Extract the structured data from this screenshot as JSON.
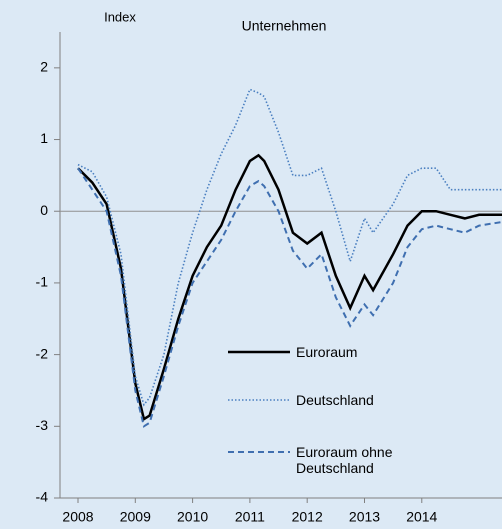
{
  "chart_data": {
    "type": "line",
    "title": "Unternehmen",
    "y_label": "Index",
    "x": [
      2008.0,
      2008.25,
      2008.5,
      2008.75,
      2009.0,
      2009.15,
      2009.25,
      2009.5,
      2009.75,
      2010.0,
      2010.25,
      2010.5,
      2010.75,
      2011.0,
      2011.15,
      2011.25,
      2011.5,
      2011.75,
      2012.0,
      2012.25,
      2012.5,
      2012.75,
      2013.0,
      2013.15,
      2013.5,
      2013.75,
      2014.0,
      2014.25,
      2014.5,
      2014.75,
      2015.0,
      2015.4
    ],
    "series": [
      {
        "name": "Euroraum",
        "color": "#000000",
        "dash": "solid",
        "values": [
          0.6,
          0.4,
          0.1,
          -0.8,
          -2.4,
          -2.9,
          -2.85,
          -2.2,
          -1.5,
          -0.9,
          -0.5,
          -0.2,
          0.3,
          0.7,
          0.78,
          0.7,
          0.3,
          -0.3,
          -0.45,
          -0.3,
          -0.9,
          -1.35,
          -0.9,
          -1.1,
          -0.6,
          -0.2,
          0.0,
          0.0,
          -0.05,
          -0.1,
          -0.05,
          -0.05
        ]
      },
      {
        "name": "Deutschland",
        "color": "#4a7fc0",
        "dash": "dotted",
        "values": [
          0.65,
          0.55,
          0.2,
          -0.6,
          -2.3,
          -2.7,
          -2.6,
          -2.0,
          -1.0,
          -0.3,
          0.3,
          0.8,
          1.2,
          1.7,
          1.65,
          1.6,
          1.1,
          0.5,
          0.5,
          0.6,
          0.0,
          -0.7,
          -0.1,
          -0.3,
          0.1,
          0.5,
          0.6,
          0.6,
          0.3,
          0.3,
          0.3,
          0.3
        ]
      },
      {
        "name": "Euroraum ohne Deutschland",
        "color": "#3f6fb0",
        "dash": "dashed",
        "values": [
          0.6,
          0.3,
          0.0,
          -0.9,
          -2.5,
          -3.0,
          -2.95,
          -2.3,
          -1.6,
          -1.0,
          -0.7,
          -0.4,
          0.0,
          0.35,
          0.42,
          0.35,
          0.0,
          -0.55,
          -0.8,
          -0.6,
          -1.2,
          -1.6,
          -1.3,
          -1.45,
          -1.0,
          -0.5,
          -0.25,
          -0.2,
          -0.25,
          -0.3,
          -0.2,
          -0.15
        ]
      }
    ],
    "xlim": [
      2008,
      2015.4
    ],
    "xticks": [
      2008,
      2009,
      2010,
      2011,
      2012,
      2013,
      2014
    ],
    "ylim": [
      -4,
      2.5
    ],
    "yticks": [
      -4,
      -3,
      -2,
      -1,
      0,
      1,
      2
    ]
  }
}
